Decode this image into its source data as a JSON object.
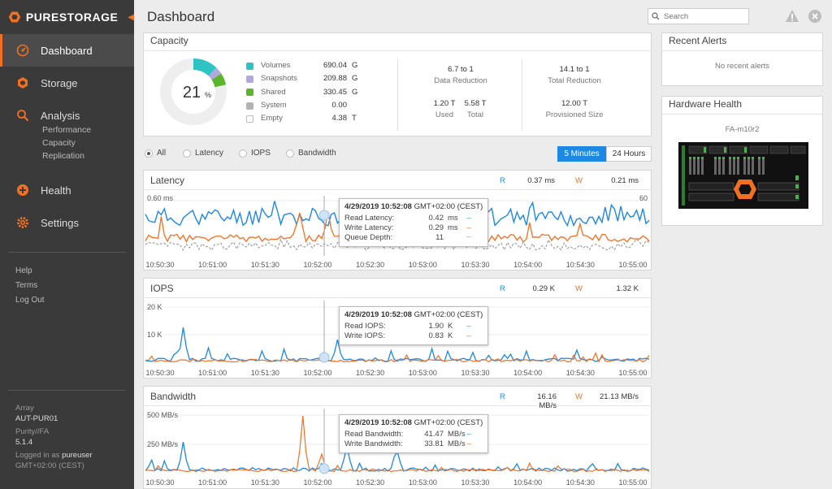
{
  "app": {
    "brand": "PURESTORAGE",
    "page_title": "Dashboard"
  },
  "sidebar": {
    "items": [
      {
        "label": "Dashboard",
        "icon": "dashboard-icon",
        "active": true
      },
      {
        "label": "Storage",
        "icon": "storage-icon"
      },
      {
        "label": "Analysis",
        "icon": "analysis-icon",
        "sub": [
          "Performance",
          "Capacity",
          "Replication"
        ]
      },
      {
        "label": "Health",
        "icon": "health-icon"
      },
      {
        "label": "Settings",
        "icon": "settings-icon"
      }
    ],
    "links": [
      "Help",
      "Terms",
      "Log Out"
    ],
    "array_label": "Array",
    "array_name": "AUT-PUR01",
    "os_label": "Purity//FA",
    "os_version": "5.1.4",
    "logged_in_label": "Logged in as",
    "user": "pureuser",
    "timezone": "GMT+02:00 (CEST)"
  },
  "header": {
    "search_placeholder": "Search"
  },
  "capacity": {
    "title": "Capacity",
    "percent": "21",
    "percent_unit": "%",
    "legend": [
      {
        "label": "Volumes",
        "value": "690.04",
        "unit": "G",
        "color": "#2ec4c4"
      },
      {
        "label": "Snapshots",
        "value": "209.88",
        "unit": "G",
        "color": "#b3a8dc"
      },
      {
        "label": "Shared",
        "value": "330.45",
        "unit": "G",
        "color": "#5ab52b"
      },
      {
        "label": "System",
        "value": "0.00",
        "unit": "",
        "color": "#b3b3b3"
      },
      {
        "label": "Empty",
        "value": "4.38",
        "unit": "T",
        "color": "#ffffff"
      }
    ],
    "data_reduction": {
      "value": "6.7 to 1",
      "label": "Data Reduction"
    },
    "total_reduction": {
      "value": "14.1 to 1",
      "label": "Total Reduction"
    },
    "used": {
      "value": "1.20 T",
      "label": "Used"
    },
    "total": {
      "value": "5.58 T",
      "label": "Total"
    },
    "provisioned": {
      "value": "12.00 T",
      "label": "Provisioned Size"
    }
  },
  "recent_alerts": {
    "title": "Recent Alerts",
    "empty_text": "No recent alerts"
  },
  "hardware_health": {
    "title": "Hardware Health",
    "array_name": "FA-m10r2"
  },
  "filters": {
    "radios": [
      "All",
      "Latency",
      "IOPS",
      "Bandwidth"
    ],
    "selected": "All",
    "ranges": [
      "5 Minutes",
      "24 Hours"
    ],
    "selected_range": "5 Minutes"
  },
  "time_labels": [
    "10:50:30",
    "10:51:00",
    "10:51:30",
    "10:52:00",
    "10:52:30",
    "10:53:00",
    "10:53:30",
    "10:54:00",
    "10:54:30",
    "10:55:00"
  ],
  "latency": {
    "title": "Latency",
    "r_label": "R",
    "r_value": "0.37 ms",
    "w_label": "W",
    "w_value": "0.21 ms",
    "y_top": "0.60 ms",
    "y_right_top": "60",
    "tooltip": {
      "timestamp": "4/29/2019 10:52:08",
      "tz": "GMT+02:00 (CEST)",
      "rows": [
        {
          "label": "Read Latency:",
          "value": "0.42",
          "unit": "ms",
          "color": "#1e88e5"
        },
        {
          "label": "Write Latency:",
          "value": "0.29",
          "unit": "ms",
          "color": "#f37021"
        },
        {
          "label": "Queue Depth:",
          "value": "11",
          "unit": "",
          "color": "#999999"
        }
      ]
    }
  },
  "iops": {
    "title": "IOPS",
    "r_label": "R",
    "r_value": "0.29 K",
    "w_label": "W",
    "w_value": "1.32 K",
    "y_labels": [
      "20 K",
      "10 K"
    ],
    "tooltip": {
      "timestamp": "4/29/2019 10:52:08",
      "tz": "GMT+02:00 (CEST)",
      "rows": [
        {
          "label": "Read IOPS:",
          "value": "1.90",
          "unit": "K",
          "color": "#1e88e5"
        },
        {
          "label": "Write IOPS:",
          "value": "0.83",
          "unit": "K",
          "color": "#f37021"
        }
      ]
    }
  },
  "bandwidth": {
    "title": "Bandwidth",
    "r_label": "R",
    "r_value": "16.16 MB/s",
    "w_label": "W",
    "w_value": "21.13 MB/s",
    "y_labels": [
      "500 MB/s",
      "250 MB/s"
    ],
    "tooltip": {
      "timestamp": "4/29/2019 10:52:08",
      "tz": "GMT+02:00 (CEST)",
      "rows": [
        {
          "label": "Read Bandwidth:",
          "value": "41.47",
          "unit": "MB/s",
          "color": "#1e88e5"
        },
        {
          "label": "Write Bandwidth:",
          "value": "33.81",
          "unit": "MB/s",
          "color": "#f37021"
        }
      ]
    }
  },
  "colors": {
    "accent": "#f37021",
    "read": "#1e88e5",
    "write": "#f37021",
    "queue": "#999999",
    "sidebar": "#3a3a3a"
  }
}
